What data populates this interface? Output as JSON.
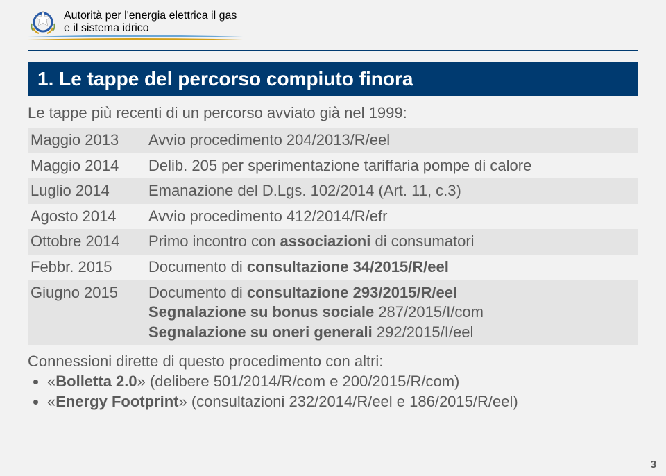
{
  "header": {
    "authority_line1": "Autorità per l'energia elettrica il gas",
    "authority_line2": "e il sistema idrico",
    "emblem_colors": {
      "gold": "#d4a018",
      "blue": "#2a5ca8"
    },
    "swoosh_colors": {
      "top": "#6aa7d6",
      "bottom": "#d4a018"
    },
    "rule_color": "#003a70"
  },
  "title": "1. Le tappe del percorso compiuto finora",
  "title_bg": "#003a70",
  "subtitle": "Le tappe più recenti di un percorso avviato già nel 1999:",
  "rows": [
    {
      "date": "Maggio 2013",
      "text": "Avvio procedimento 204/2013/R/eel",
      "alt": true
    },
    {
      "date": "Maggio 2014",
      "text": "Delib. 205 per sperimentazione tariffaria pompe di calore",
      "alt": false
    },
    {
      "date": "Luglio 2014",
      "text": "Emanazione del D.Lgs. 102/2014 (Art. 11, c.3)",
      "alt": true
    },
    {
      "date": "Agosto 2014",
      "text": "Avvio procedimento 412/2014/R/efr",
      "alt": false
    },
    {
      "date": "Ottobre 2014",
      "text_html": "Primo incontro con <b>associazioni</b> di consumatori",
      "alt": true
    },
    {
      "date": "Febbr. 2015",
      "text_html": "Documento di <b>consultazione 34/2015/R/eel</b>",
      "alt": false
    },
    {
      "date": "Giugno 2015",
      "text_html": "Documento di <b>consultazione 293/2015/R/eel</b><br><b>Segnalazione su bonus sociale</b> 287/2015/I/com<br><b>Segnalazione su oneri generali</b> 292/2015/I/eel",
      "alt": true
    }
  ],
  "footnote_lead": "Connessioni dirette di questo procedimento con altri:",
  "footnote_items": [
    "«<b>Bolletta 2.0</b>» (delibere 501/2014/R/com e 200/2015/R/com)",
    "«<b>Energy Footprint</b>» (consultazioni 232/2014/R/eel e 186/2015/R/eel)"
  ],
  "page_number": "3",
  "colors": {
    "page_bg": "#f2f2f2",
    "alt_row_bg": "#e4e4e4",
    "text": "#5a5a5a"
  }
}
